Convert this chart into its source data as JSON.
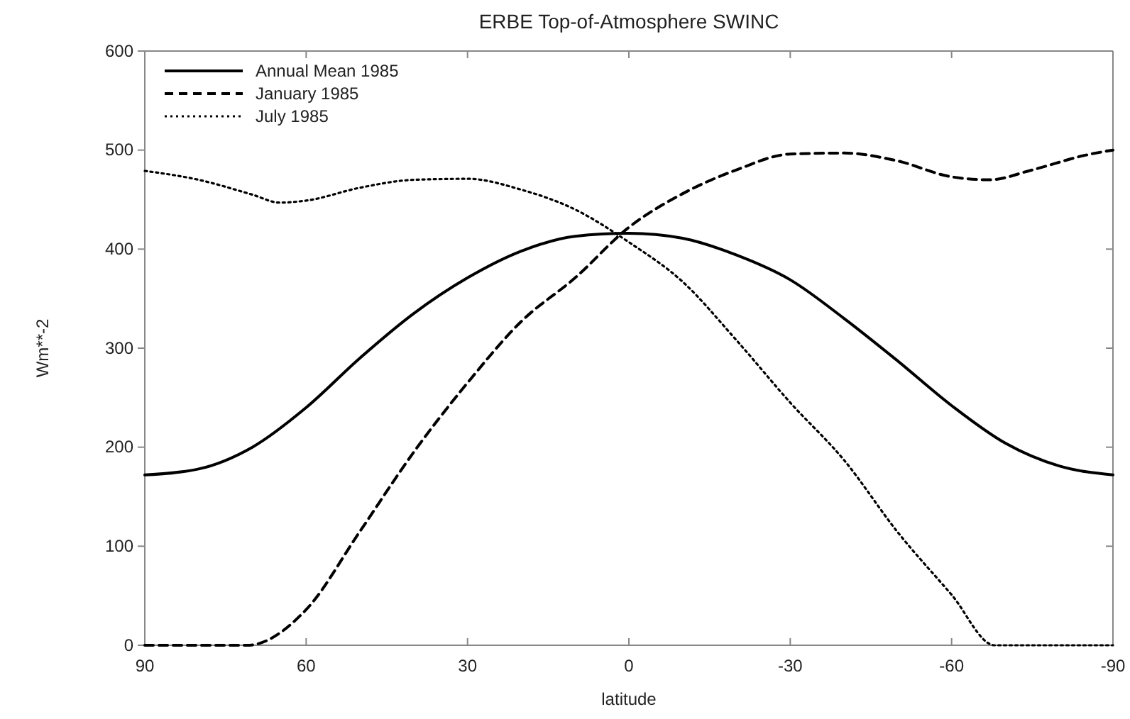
{
  "chart_data": {
    "type": "line",
    "title": "ERBE Top-of-Atmosphere SWINC",
    "xlabel": "latitude",
    "ylabel": "Wm**-2",
    "xlim": [
      90,
      -90
    ],
    "xticks": [
      90,
      60,
      30,
      0,
      -30,
      -60,
      -90
    ],
    "ylim": [
      0,
      600
    ],
    "yticks": [
      0,
      100,
      200,
      300,
      400,
      500,
      600
    ],
    "grid": false,
    "legend": "top left",
    "series": [
      {
        "name": "Annual Mean 1985",
        "color": "#000000",
        "line_style": "solid",
        "x": [
          90,
          80,
          70,
          60,
          50,
          40,
          30,
          20,
          10,
          0,
          -10,
          -20,
          -30,
          -40,
          -50,
          -60,
          -70,
          -80,
          -90
        ],
        "values": [
          172,
          178,
          200,
          240,
          290,
          335,
          371,
          398,
          413,
          416,
          411,
          394,
          369,
          330,
          287,
          242,
          204,
          181,
          172
        ]
      },
      {
        "name": "January 1985",
        "color": "#000000",
        "line_style": "dashed",
        "x": [
          90,
          80,
          71,
          60,
          50,
          40,
          30,
          20,
          10,
          0,
          -10,
          -20,
          -30,
          -40,
          -50,
          -60,
          -67,
          -75,
          -85,
          -90
        ],
        "values": [
          0,
          0,
          0,
          36,
          115,
          195,
          265,
          327,
          371,
          422,
          456,
          480,
          496,
          497,
          489,
          473,
          470,
          480,
          495,
          500
        ]
      },
      {
        "name": "July 1985",
        "color": "#000000",
        "line_style": "dotted",
        "x": [
          90,
          80,
          70,
          65,
          60,
          50,
          40,
          30,
          20,
          10,
          0,
          -10,
          -20,
          -30,
          -40,
          -50,
          -60,
          -68,
          -80,
          -90
        ],
        "values": [
          479,
          470,
          455,
          447,
          449,
          462,
          470,
          471,
          460,
          440,
          407,
          367,
          308,
          245,
          187,
          114,
          51,
          0,
          0,
          0
        ]
      }
    ]
  }
}
